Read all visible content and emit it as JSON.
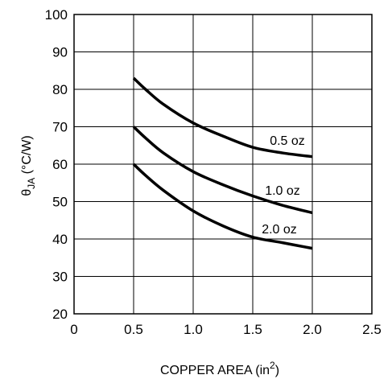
{
  "chart_data": {
    "type": "line",
    "xlabel": "COPPER AREA (in",
    "xlabel_sup": "2",
    "xlabel_end": ")",
    "ylabel_symbol": "θ",
    "ylabel_sub": "JA",
    "ylabel_unit": " (°C/W)",
    "xlim": [
      0,
      2.5
    ],
    "ylim": [
      20,
      100
    ],
    "x_ticks": [
      "0",
      "0.5",
      "1.0",
      "1.5",
      "2.0",
      "2.5"
    ],
    "x_tick_values": [
      0,
      0.5,
      1.0,
      1.5,
      2.0,
      2.5
    ],
    "y_ticks": [
      "20",
      "30",
      "40",
      "50",
      "60",
      "70",
      "80",
      "90",
      "100"
    ],
    "y_tick_values": [
      20,
      30,
      40,
      50,
      60,
      70,
      80,
      90,
      100
    ],
    "grid": true,
    "series": [
      {
        "name": "0.5 oz",
        "x": [
          0.5,
          0.6,
          0.75,
          1.0,
          1.25,
          1.5,
          1.75,
          2.0
        ],
        "y": [
          83,
          80,
          76,
          71,
          67.5,
          64.5,
          63,
          62
        ]
      },
      {
        "name": "1.0 oz",
        "x": [
          0.5,
          0.6,
          0.75,
          1.0,
          1.25,
          1.5,
          1.75,
          2.0
        ],
        "y": [
          70,
          67,
          63,
          58,
          54.5,
          51.5,
          49,
          47
        ]
      },
      {
        "name": "2.0 oz",
        "x": [
          0.5,
          0.6,
          0.75,
          1.0,
          1.25,
          1.5,
          1.75,
          2.0
        ],
        "y": [
          60,
          57,
          53,
          47.5,
          43.5,
          40.5,
          39,
          37.5
        ]
      }
    ]
  }
}
